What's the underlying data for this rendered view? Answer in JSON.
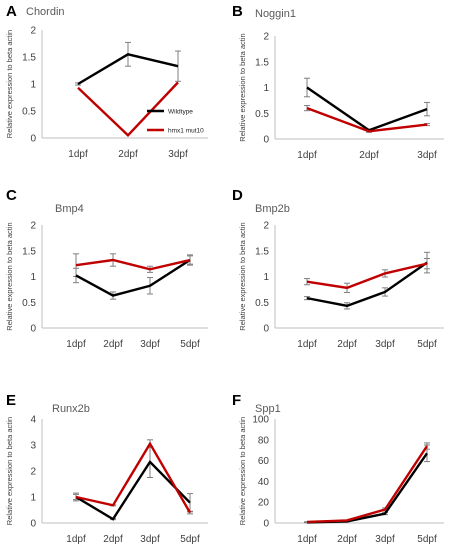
{
  "colors": {
    "wildtype": "#000000",
    "mutant": "#c00000",
    "error": "#7f7f7f",
    "axis": "#bfbfbf"
  },
  "chart_data": [
    {
      "letter": "A",
      "type": "line",
      "title": "Chordin",
      "ylabel": "Relative expression to beta actin",
      "categories": [
        "1dpf",
        "2dpf",
        "3dpf"
      ],
      "ylim": [
        0,
        2
      ],
      "yticks": [
        "0",
        "0.5",
        "1",
        "1.5",
        "2"
      ],
      "legend": {
        "position": "inside-right",
        "entries": [
          "Wildtype",
          "hmx1 mut10"
        ]
      },
      "series": [
        {
          "name": "Wildtype",
          "values": [
            1.0,
            1.55,
            1.33
          ],
          "errors": [
            0.02,
            0.22,
            0.28
          ]
        },
        {
          "name": "hmx1 mut10",
          "values": [
            0.93,
            0.05,
            1.03
          ],
          "errors": [
            0.0,
            0.0,
            0.0
          ]
        }
      ]
    },
    {
      "letter": "B",
      "type": "line",
      "title": "Noggin1",
      "ylabel": "Relative expression to beta actin",
      "categories": [
        "1dpf",
        "2dpf",
        "3dpf"
      ],
      "ylim": [
        0,
        2
      ],
      "yticks": [
        "0",
        "0.5",
        "1",
        "1.5",
        "2"
      ],
      "series": [
        {
          "name": "",
          "values": [
            1.0,
            0.17,
            0.58
          ],
          "errors": [
            0.18,
            0.02,
            0.13
          ]
        },
        {
          "name": "",
          "values": [
            0.6,
            0.15,
            0.28
          ],
          "errors": [
            0.05,
            0.02,
            0.02
          ]
        }
      ]
    },
    {
      "letter": "C",
      "type": "line",
      "title": "Bmp4",
      "ylabel": "Relative expression to beta actin",
      "categories": [
        "1dpf",
        "2dpf",
        "3dpf",
        "5dpf"
      ],
      "ylim": [
        0,
        2
      ],
      "yticks": [
        "0",
        "0.5",
        "1",
        "1.5",
        "2"
      ],
      "series": [
        {
          "name": "",
          "values": [
            1.02,
            0.63,
            0.82,
            1.32
          ],
          "errors": [
            0.14,
            0.07,
            0.16,
            0.08
          ]
        },
        {
          "name": "",
          "values": [
            1.22,
            1.32,
            1.14,
            1.32
          ],
          "errors": [
            0.22,
            0.12,
            0.06,
            0.1
          ]
        }
      ]
    },
    {
      "letter": "D",
      "type": "line",
      "title": "Bmp2b",
      "ylabel": "Relative expression to beta actin",
      "categories": [
        "1dpf",
        "2dpf",
        "3dpf",
        "5dpf"
      ],
      "ylim": [
        0,
        2
      ],
      "yticks": [
        "0",
        "0.5",
        "1",
        "1.5",
        "2"
      ],
      "series": [
        {
          "name": "",
          "values": [
            0.58,
            0.43,
            0.7,
            1.27
          ],
          "errors": [
            0.03,
            0.06,
            0.08,
            0.2
          ]
        },
        {
          "name": "",
          "values": [
            0.9,
            0.78,
            1.06,
            1.25
          ],
          "errors": [
            0.06,
            0.09,
            0.07,
            0.1
          ]
        }
      ]
    },
    {
      "letter": "E",
      "type": "line",
      "title": "Runx2b",
      "ylabel": "Relative expression to beta actin",
      "categories": [
        "1dpf",
        "2dpf",
        "3dpf",
        "5dpf"
      ],
      "ylim": [
        0,
        4
      ],
      "yticks": [
        "0",
        "1",
        "2",
        "3",
        "4"
      ],
      "series": [
        {
          "name": "",
          "values": [
            1.0,
            0.15,
            2.35,
            0.78
          ],
          "errors": [
            0.15,
            0.02,
            0.6,
            0.35
          ]
        },
        {
          "name": "",
          "values": [
            1.0,
            0.68,
            3.05,
            0.4
          ],
          "errors": [
            0.1,
            0.02,
            0.15,
            0.05
          ]
        }
      ]
    },
    {
      "letter": "F",
      "type": "line",
      "title": "Spp1",
      "ylabel": "Relative expression to beta actin",
      "categories": [
        "1dpf",
        "2dpf",
        "3dpf",
        "5dpf"
      ],
      "ylim": [
        0,
        100
      ],
      "yticks": [
        "0",
        "20",
        "40",
        "60",
        "80",
        "100"
      ],
      "series": [
        {
          "name": "",
          "values": [
            0.5,
            1.5,
            9.0,
            67.0
          ],
          "errors": [
            0.2,
            0.3,
            1.0,
            8.0
          ]
        },
        {
          "name": "",
          "values": [
            1.0,
            2.5,
            13.0,
            74.0
          ],
          "errors": [
            0.2,
            0.3,
            1.5,
            3.0
          ]
        }
      ]
    }
  ]
}
